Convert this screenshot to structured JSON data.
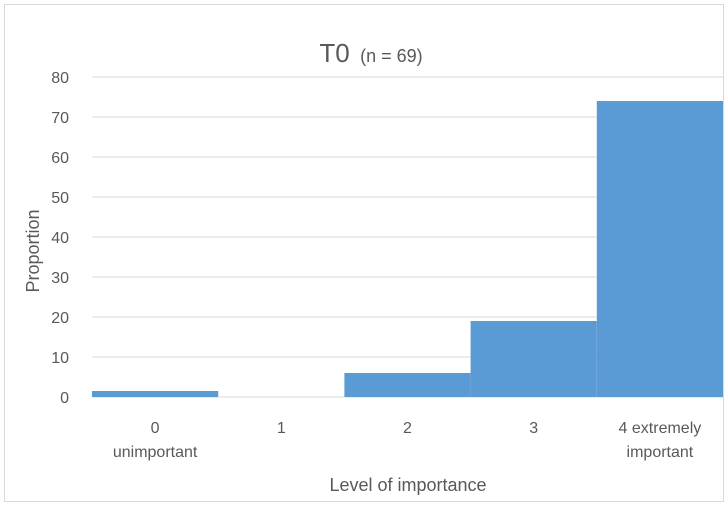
{
  "chart_data": {
    "type": "bar",
    "title": "T0",
    "subtitle": "(n = 69)",
    "xlabel": "Level of importance",
    "ylabel": "Proportion",
    "categories": [
      [
        "0",
        "unimportant"
      ],
      [
        "1"
      ],
      [
        "2"
      ],
      [
        "3"
      ],
      [
        "4 extremely",
        "important"
      ]
    ],
    "values": [
      1.5,
      0,
      6,
      19,
      74
    ],
    "ylim": [
      0,
      80
    ],
    "yticks": [
      0,
      10,
      20,
      30,
      40,
      50,
      60,
      70,
      80
    ],
    "grid": true,
    "legend": "none",
    "bar_color": "#5b9bd5",
    "grid_color": "#d9d9d9",
    "text_color": "#595959"
  }
}
